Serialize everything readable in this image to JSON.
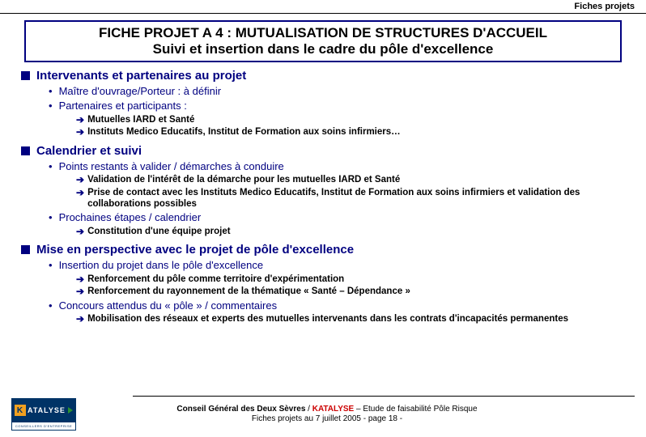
{
  "header": {
    "right": "Fiches projets"
  },
  "title": {
    "line1": "FICHE PROJET A 4 : MUTUALISATION DE STRUCTURES D'ACCUEIL",
    "line2": "Suivi et insertion dans le cadre du pôle d'excellence"
  },
  "sections": {
    "s1": {
      "title": "Intervenants et partenaires au projet",
      "b1": "Maître d'ouvrage/Porteur : à définir",
      "b2": "Partenaires et participants :",
      "a1": "Mutuelles IARD et Santé",
      "a2": "Instituts Medico Educatifs, Institut de Formation aux soins infirmiers…"
    },
    "s2": {
      "title": "Calendrier et suivi",
      "b1": "Points restants à valider / démarches à conduire",
      "a1": "Validation de l'intérêt de la démarche pour les mutuelles IARD et Santé",
      "a2": "Prise de contact avec les Instituts Medico Educatifs, Institut de Formation aux soins infirmiers et validation des collaborations possibles",
      "b2": "Prochaines étapes / calendrier",
      "a3": "Constitution d'une équipe projet"
    },
    "s3": {
      "title": "Mise en perspective avec le projet de pôle d'excellence",
      "b1": "Insertion du projet dans le pôle d'excellence",
      "a1": "Renforcement du pôle comme territoire d'expérimentation",
      "a2": "Renforcement du rayonnement de la thématique « Santé – Dépendance »",
      "b2": "Concours attendus du « pôle »  / commentaires",
      "a3": "Mobilisation des réseaux et experts des mutuelles intervenants dans les contrats d'incapacités permanentes"
    }
  },
  "footer": {
    "l1a": "Conseil Général des Deux Sèvres",
    "l1b": " / ",
    "l1c": "KATALYSE",
    "l1d": " – Etude de faisabilité Pôle Risque",
    "l2": "Fiches projets au 7 juillet 2005 - page 18 -",
    "logo_main": "ATALYSE",
    "logo_sub": "CONSEILLERS D'ENTREPRISE"
  },
  "colors": {
    "navy": "#000080",
    "red": "#cc0000",
    "logo_bg": "#003366",
    "logo_accent": "#f0a020",
    "logo_green": "#2a9030"
  }
}
